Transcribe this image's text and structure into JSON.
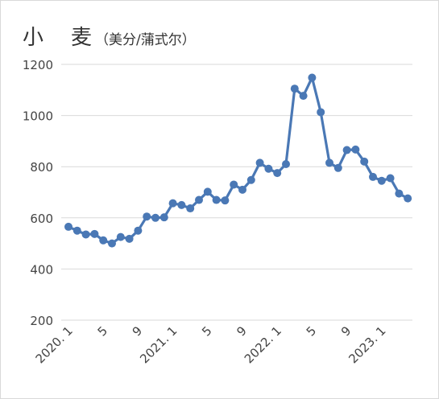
{
  "chart_data": {
    "type": "line",
    "title": "小　麦",
    "title_unit": "（美分/蒲式尔）",
    "ylim": [
      200,
      1200
    ],
    "yticks": [
      200,
      400,
      600,
      800,
      1000,
      1200
    ],
    "grid": true,
    "legend": "none",
    "x_tick_labels": [
      {
        "index": 0,
        "label": "2020. 1"
      },
      {
        "index": 4,
        "label": "5"
      },
      {
        "index": 8,
        "label": "9"
      },
      {
        "index": 12,
        "label": "2021. 1"
      },
      {
        "index": 16,
        "label": "5"
      },
      {
        "index": 20,
        "label": "9"
      },
      {
        "index": 24,
        "label": "2022. 1"
      },
      {
        "index": 28,
        "label": "5"
      },
      {
        "index": 32,
        "label": "9"
      },
      {
        "index": 36,
        "label": "2023. 1"
      }
    ],
    "series": [
      {
        "color": "#4a78b5",
        "values": [
          565,
          550,
          535,
          537,
          512,
          500,
          525,
          518,
          550,
          605,
          600,
          602,
          657,
          650,
          637,
          670,
          702,
          670,
          668,
          730,
          710,
          748,
          815,
          792,
          775,
          810,
          1105,
          1077,
          1148,
          1013,
          815,
          795,
          865,
          867,
          820,
          760,
          745,
          755,
          695,
          676
        ]
      }
    ]
  }
}
